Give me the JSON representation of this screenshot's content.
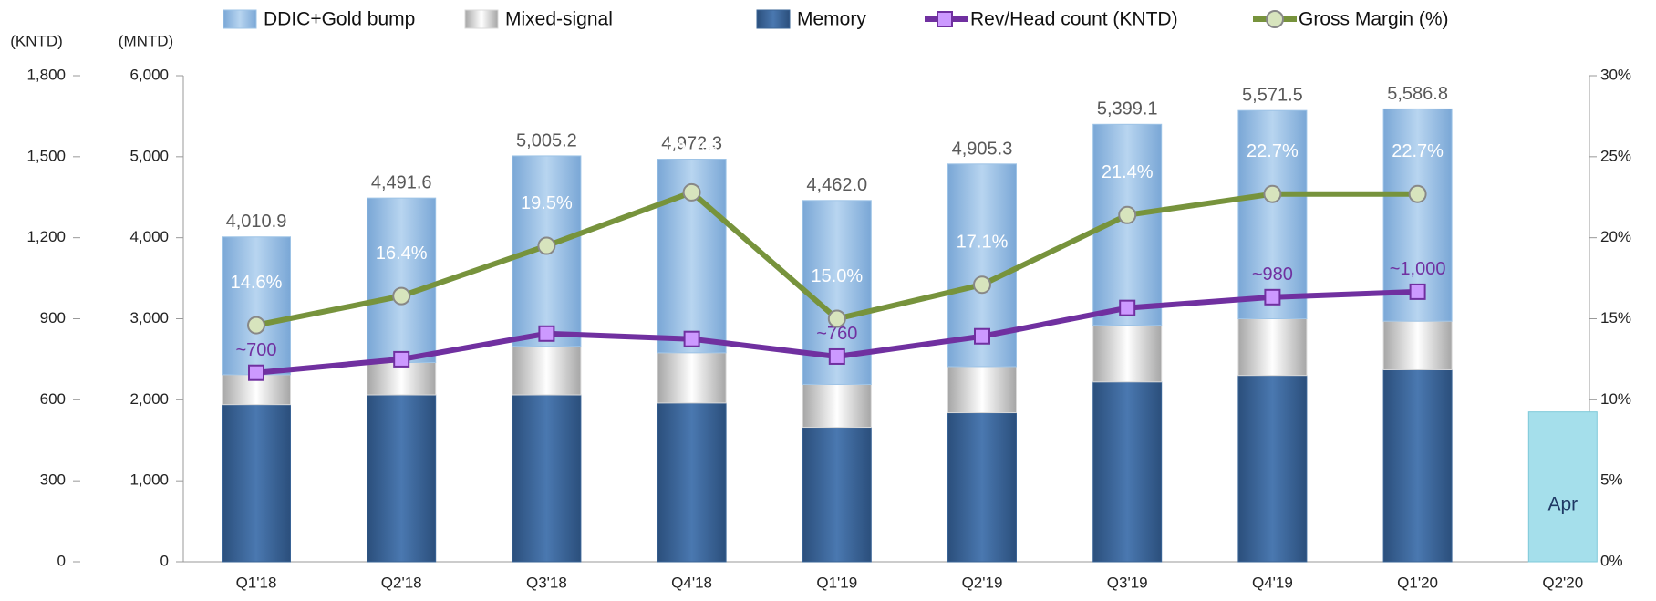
{
  "chart_data": {
    "type": "bar",
    "categories": [
      "Q1'18",
      "Q2'18",
      "Q3'18",
      "Q4'18",
      "Q1'19",
      "Q2'19",
      "Q3'19",
      "Q4'19",
      "Q1'20",
      "Q2'20"
    ],
    "y_label": "(MNTD)",
    "ylim": [
      0,
      6000
    ],
    "yticks": [
      0,
      {
        "value": 1000,
        "label": "1,000"
      },
      {
        "value": 2000,
        "label": "2,000"
      },
      {
        "value": 3000,
        "label": "3,000"
      },
      {
        "value": 4000,
        "label": "4,000"
      },
      {
        "value": 5000,
        "label": "5,000"
      },
      {
        "value": 6000,
        "label": "6,000"
      }
    ],
    "y_outer": {
      "label": "(KNTD)",
      "lim": [
        0,
        1800
      ],
      "ticks": [
        0,
        300,
        600,
        900,
        {
          "value": 1200,
          "label": "1,200"
        },
        {
          "value": 1500,
          "label": "1,500"
        },
        {
          "value": 1800,
          "label": "1,800"
        }
      ]
    },
    "y2lim": [
      0,
      30
    ],
    "y2ticks": [
      {
        "value": 0,
        "label": "0%"
      },
      {
        "value": 5,
        "label": "5%"
      },
      {
        "value": 10,
        "label": "10%"
      },
      {
        "value": 15,
        "label": "15%"
      },
      {
        "value": 20,
        "label": "20%"
      },
      {
        "value": 25,
        "label": "25%"
      },
      {
        "value": 30,
        "label": "30%"
      }
    ],
    "grid": false,
    "series": [
      {
        "name": "DDIC+Gold bump",
        "kind": "bar",
        "axis": "y",
        "color": "#9dc3e6",
        "values": [
          1700,
          2030,
          2350,
          2390,
          2270,
          2500,
          2480,
          2570,
          2620,
          null
        ]
      },
      {
        "name": "Mixed-signal",
        "kind": "bar",
        "axis": "y",
        "color": "#d9d9d9",
        "values": [
          370,
          400,
          600,
          620,
          530,
          570,
          700,
          700,
          600,
          null
        ]
      },
      {
        "name": "Memory",
        "kind": "bar",
        "axis": "y",
        "color": "#3a6496",
        "values": [
          1940,
          2060,
          2060,
          1960,
          1660,
          1840,
          2220,
          2300,
          2370,
          null
        ]
      },
      {
        "name": "Rev/Head count (KNTD)",
        "kind": "line",
        "axis": "y_outer",
        "color": "#7030a0",
        "marker_color": "#cc99ff",
        "marker": "square",
        "values": [
          700,
          750,
          845,
          825,
          760,
          835,
          940,
          980,
          1000,
          null
        ],
        "value_labels": [
          "~700",
          null,
          null,
          null,
          "~760",
          null,
          null,
          "~980",
          "~1,000",
          null
        ]
      },
      {
        "name": "Gross Margin (%)",
        "kind": "line",
        "axis": "y2",
        "color": "#77933c",
        "marker_color": "#d7e4bd",
        "marker": "circle",
        "values": [
          14.6,
          16.4,
          19.5,
          22.8,
          15.0,
          17.1,
          21.4,
          22.7,
          22.7,
          null
        ],
        "value_labels": [
          "14.6%",
          "16.4%",
          "19.5%",
          "22.8%",
          "15.0%",
          "17.1%",
          "21.4%",
          "22.7%",
          "22.7%",
          null
        ]
      }
    ],
    "totals": [
      4010.9,
      4491.6,
      5005.2,
      4972.3,
      4462.0,
      4905.3,
      5399.1,
      5571.5,
      5586.8,
      null
    ],
    "total_labels": [
      "4,010.9",
      "4,491.6",
      "5,005.2",
      "4,972.3",
      "4,462.0",
      "4,905.3",
      "5,399.1",
      "5,571.5",
      "5,586.8",
      null
    ],
    "april_bar": {
      "label": "Apr",
      "value": 1850,
      "color": "#a5dfeb"
    }
  }
}
